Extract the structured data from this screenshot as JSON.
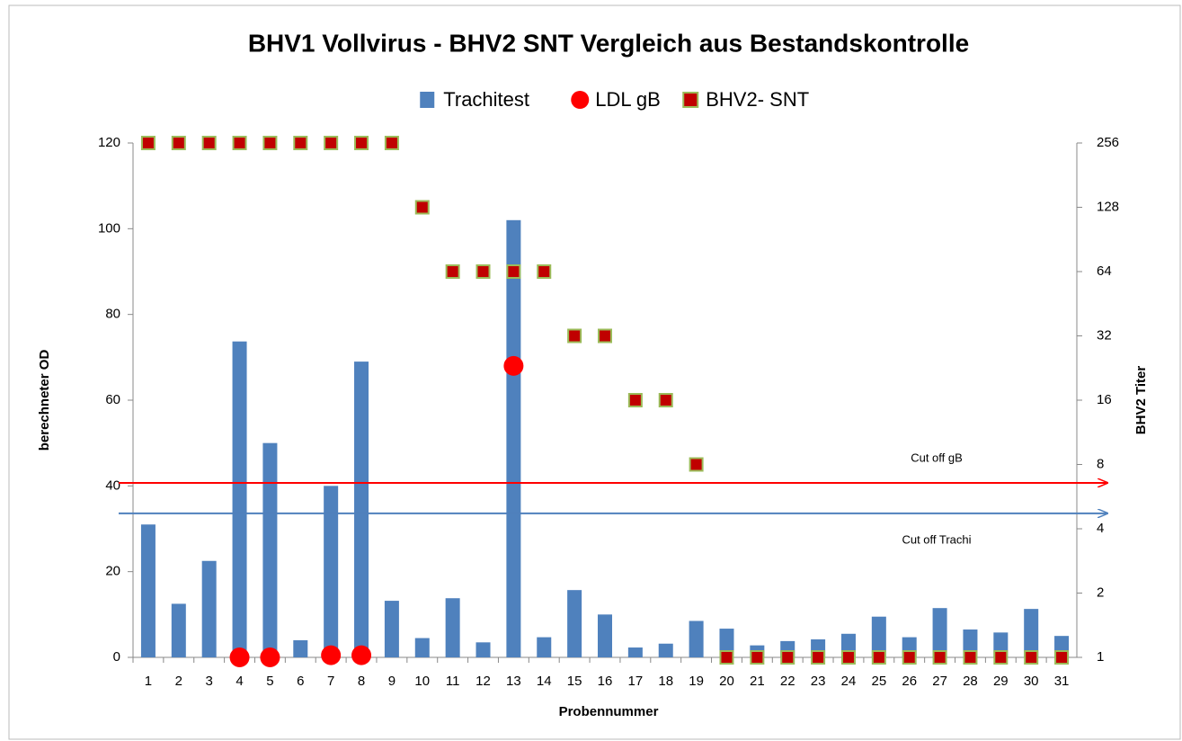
{
  "chart_data": {
    "type": "bar",
    "title": "BHV1 Vollvirus  - BHV2 SNT Vergleich aus  Bestandskontrolle",
    "x_label": "Probennummer",
    "y_label": "berechneter OD",
    "y2_label": "BHV2 Titer",
    "categories": [
      "1",
      "2",
      "3",
      "4",
      "5",
      "6",
      "7",
      "8",
      "9",
      "10",
      "11",
      "12",
      "13",
      "14",
      "15",
      "16",
      "17",
      "18",
      "19",
      "20",
      "21",
      "22",
      "23",
      "24",
      "25",
      "26",
      "27",
      "28",
      "29",
      "30",
      "31"
    ],
    "series": [
      {
        "name": "Trachitest",
        "type": "bar",
        "color": "#4f81bd",
        "values": [
          31,
          12.5,
          22.5,
          73.7,
          50,
          4,
          40,
          69,
          13.2,
          4.5,
          13.8,
          3.5,
          102,
          4.7,
          15.7,
          10,
          2.3,
          3.2,
          8.5,
          6.7,
          2.8,
          3.8,
          4.2,
          5.5,
          9.5,
          4.7,
          11.5,
          6.5,
          5.8,
          11.3,
          5
        ]
      },
      {
        "name": "LDL gB",
        "type": "circle",
        "color": "#ff0000",
        "values": [
          null,
          null,
          null,
          0,
          0,
          null,
          0.5,
          0.5,
          null,
          null,
          null,
          null,
          68,
          null,
          null,
          null,
          null,
          null,
          null,
          null,
          null,
          null,
          null,
          null,
          null,
          null,
          null,
          null,
          null,
          null,
          null
        ]
      },
      {
        "name": "BHV2- SNT",
        "type": "square",
        "color": "#c00000",
        "axis": "y2",
        "values": [
          256,
          256,
          256,
          256,
          256,
          256,
          256,
          256,
          256,
          128,
          64,
          64,
          64,
          64,
          32,
          32,
          16,
          16,
          8,
          1,
          1,
          1,
          1,
          1,
          1,
          1,
          1,
          1,
          1,
          1,
          1
        ]
      }
    ],
    "ylim": [
      0,
      120
    ],
    "yticks": [
      0,
      20,
      40,
      60,
      80,
      100,
      120
    ],
    "y2lim": [
      1,
      256
    ],
    "y2ticks": [
      1,
      2,
      4,
      8,
      16,
      32,
      64,
      128,
      256
    ],
    "y2_log_base": 2,
    "reference_lines": [
      {
        "label": "Cut off  gB",
        "value": 40.7,
        "color": "#ff0000"
      },
      {
        "label": "Cut off  Trachi",
        "value": 33.6,
        "color": "#4f81bd"
      }
    ],
    "legend": "top"
  }
}
